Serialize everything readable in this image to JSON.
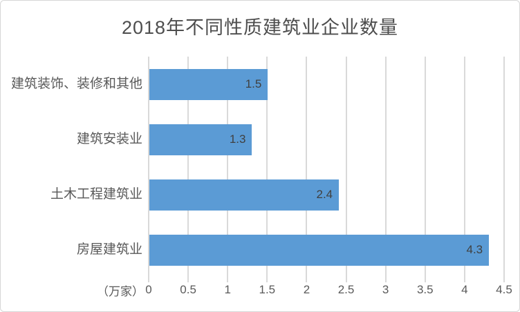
{
  "chart_data": {
    "type": "bar",
    "orientation": "horizontal",
    "title": "2018年不同性质建筑业企业数量",
    "unit_label": "（万家）",
    "categories": [
      "建筑装饰、装修和其他",
      "建筑安装业",
      "土木工程建筑业",
      "房屋建筑业"
    ],
    "values": [
      1.5,
      1.3,
      2.4,
      4.3
    ],
    "value_labels": [
      "1.5",
      "1.3",
      "2.4",
      "4.3"
    ],
    "x_ticks": [
      "0",
      "0.5",
      "1",
      "1.5",
      "2",
      "2.5",
      "3",
      "3.5",
      "4",
      "4.5"
    ],
    "xlim": [
      0,
      4.5
    ],
    "grid": true,
    "legend": "none",
    "colors": {
      "bar": "#5B9BD5",
      "gridline": "#D9D9D9",
      "title_text": "#4d4d4d",
      "axis_text": "#595959",
      "value_text": "#404040"
    }
  }
}
